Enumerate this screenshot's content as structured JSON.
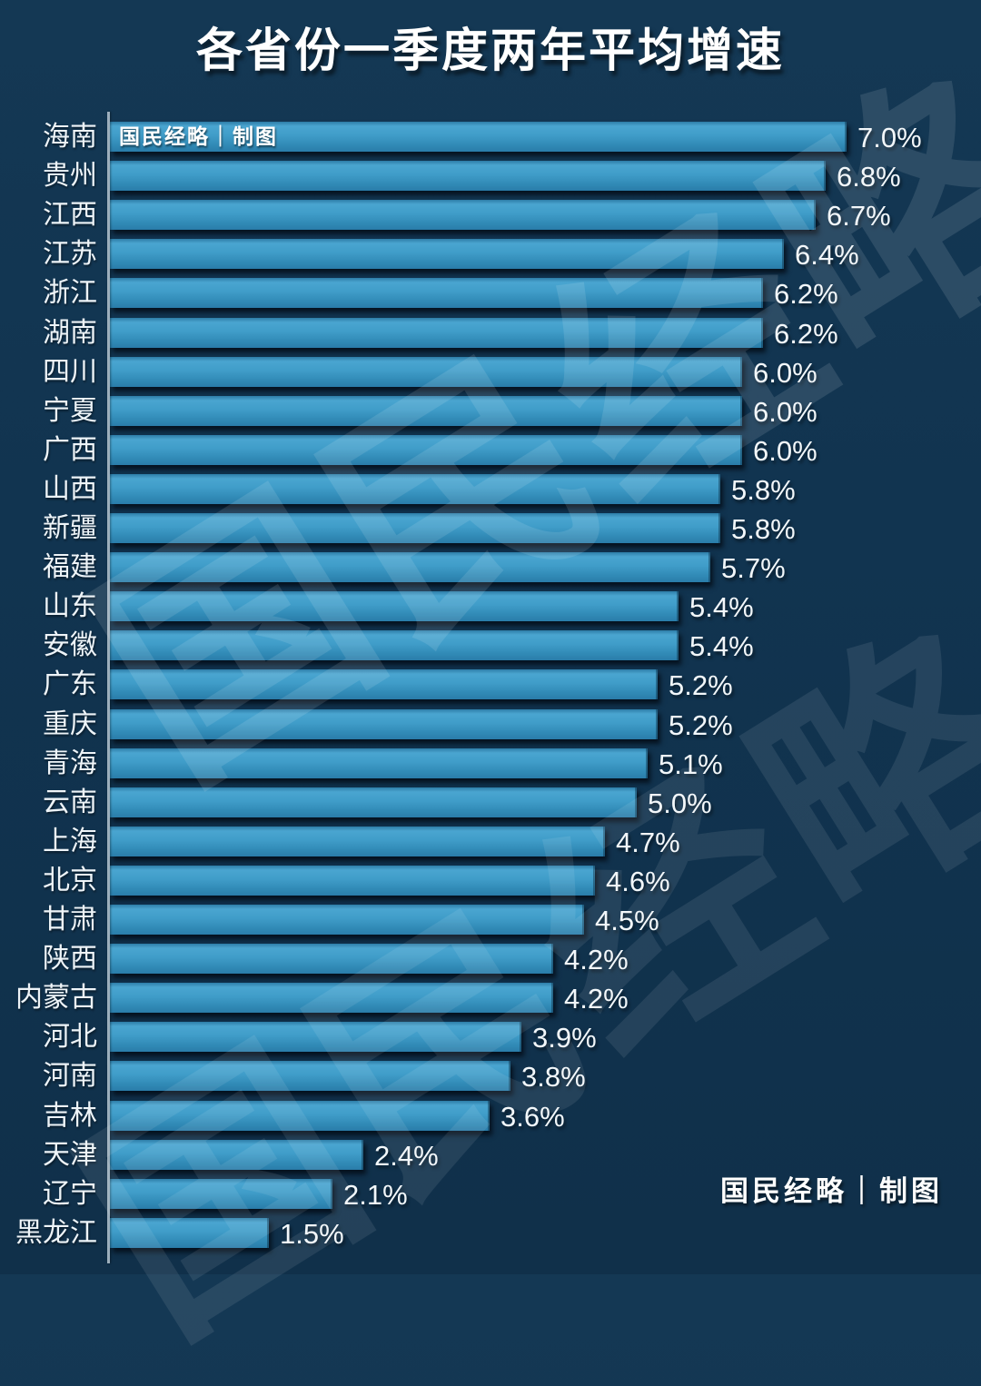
{
  "title": "各省份一季度两年平均增速",
  "credit": "国民经略｜制图",
  "watermark_text": "国民经略",
  "chart_data": {
    "type": "bar",
    "orientation": "horizontal",
    "title": "各省份一季度两年平均增速",
    "value_unit": "%",
    "x_range": [
      0,
      7.2
    ],
    "grid": false,
    "legend": "none",
    "categories": [
      "海南",
      "贵州",
      "江西",
      "江苏",
      "浙江",
      "湖南",
      "四川",
      "宁夏",
      "广西",
      "山西",
      "新疆",
      "福建",
      "山东",
      "安徽",
      "广东",
      "重庆",
      "青海",
      "云南",
      "上海",
      "北京",
      "甘肃",
      "陕西",
      "内蒙古",
      "河北",
      "河南",
      "吉林",
      "天津",
      "辽宁",
      "黑龙江"
    ],
    "values": [
      7.0,
      6.8,
      6.7,
      6.4,
      6.2,
      6.2,
      6.0,
      6.0,
      6.0,
      5.8,
      5.8,
      5.7,
      5.4,
      5.4,
      5.2,
      5.2,
      5.1,
      5.0,
      4.7,
      4.6,
      4.5,
      4.2,
      4.2,
      3.9,
      3.8,
      3.6,
      2.4,
      2.1,
      1.5
    ],
    "value_labels": [
      "7.0%",
      "6.8%",
      "6.7%",
      "6.4%",
      "6.2%",
      "6.2%",
      "6.0%",
      "6.0%",
      "6.0%",
      "5.8%",
      "5.8%",
      "5.7%",
      "5.4%",
      "5.4%",
      "5.2%",
      "5.2%",
      "5.1%",
      "5.0%",
      "4.7%",
      "4.6%",
      "4.5%",
      "4.2%",
      "4.2%",
      "3.9%",
      "3.8%",
      "3.6%",
      "2.4%",
      "2.1%",
      "1.5%"
    ]
  },
  "colors": {
    "background": "#113450",
    "bar_top": "#4aa5d0",
    "bar_bottom": "#2a7ca9",
    "bar_edge": "#2d7da7",
    "axis": "#a9bac6",
    "text": "#f2f7fa"
  }
}
